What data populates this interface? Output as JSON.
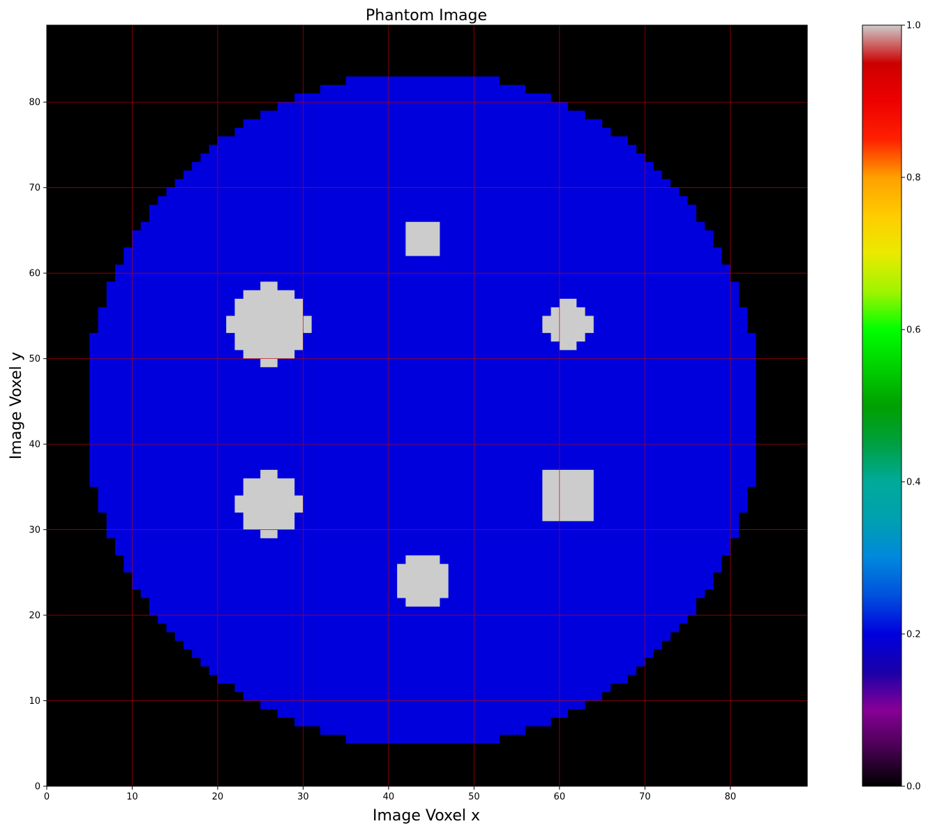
{
  "chart_data": {
    "type": "heatmap",
    "title": "Phantom Image",
    "xlabel": "Image Voxel x",
    "ylabel": "Image Voxel y",
    "xlim": [
      0,
      89
    ],
    "ylim": [
      0,
      89
    ],
    "x_ticks": [
      0,
      10,
      20,
      30,
      40,
      50,
      60,
      70,
      80
    ],
    "y_ticks": [
      0,
      10,
      20,
      30,
      40,
      50,
      60,
      70,
      80
    ],
    "grid": true,
    "grid_color": "#c00000",
    "background_value": 0.0,
    "background_color": "#000000",
    "phantom": {
      "shape": "disk",
      "center": [
        44,
        44
      ],
      "radius": 39.5,
      "value": 0.2,
      "color": "#0000dd"
    },
    "inserts": [
      {
        "shape": "disk",
        "center": [
          26,
          54
        ],
        "radius": 4.6,
        "value": 1.0
      },
      {
        "shape": "disk",
        "center": [
          26,
          33
        ],
        "radius": 3.6,
        "value": 1.0
      },
      {
        "shape": "disk",
        "center": [
          44,
          24
        ],
        "radius": 3.4,
        "value": 1.0
      },
      {
        "shape": "disk",
        "center": [
          61,
          54
        ],
        "radius": 2.6,
        "value": 1.0
      },
      {
        "shape": "square",
        "center": [
          44,
          64
        ],
        "half_width": 1.5,
        "value": 1.0
      },
      {
        "shape": "square",
        "center": [
          61,
          34
        ],
        "half_width": 2.5,
        "value": 1.0
      }
    ],
    "insert_color": "#cccccc",
    "colorbar": {
      "colormap": "nipy_spectral",
      "range": [
        0.0,
        1.0
      ],
      "ticks": [
        "0.0",
        "0.2",
        "0.4",
        "0.6",
        "0.8",
        "1.0"
      ]
    }
  }
}
